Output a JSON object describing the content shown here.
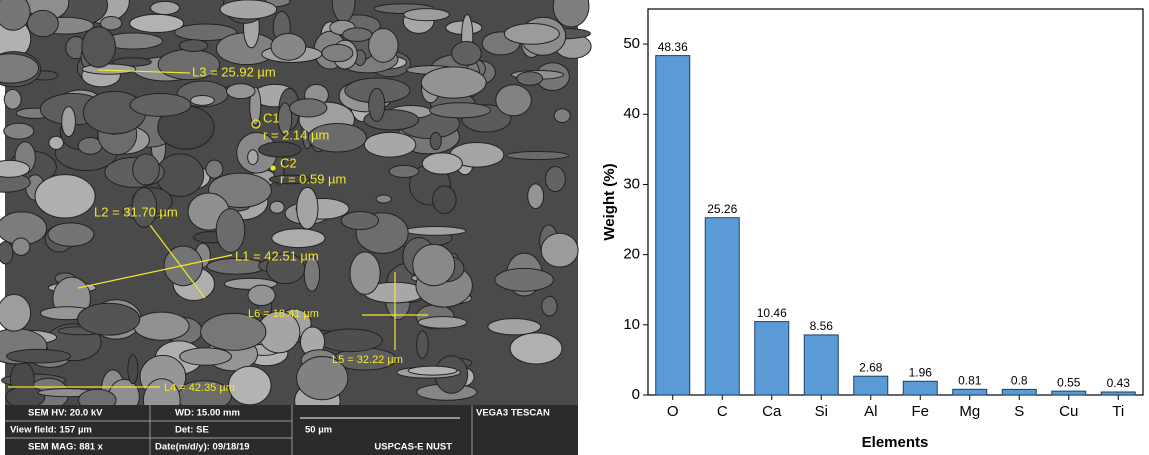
{
  "image": {
    "annotations": {
      "l3": "L3 = 25.92 µm",
      "c1": "C1",
      "r1": "r = 2.14 µm",
      "c2": "C2",
      "r2": "r = 0.59 µm",
      "l2": "L2 = 31.70 µm",
      "l1": "L1 = 42.51 µm",
      "l6": "L6 = 18.41 µm",
      "l5": "L5 = 32.22 µm",
      "l4": "L4 = 42.35 µm"
    },
    "info_bar": {
      "hv": "SEM HV: 20.0 kV",
      "wd": "WD: 15.00 mm",
      "brand": "VEGA3 TESCAN",
      "view_field": "View field: 157 µm",
      "det": "Det: SE",
      "scale": "50 µm",
      "mag": "SEM MAG: 881 x",
      "date": "Date(m/d/y): 09/18/19",
      "lab": "USPCAS-E NUST"
    }
  },
  "chart_data": {
    "type": "bar",
    "x_label": "Elements",
    "y_label": "Weight (%)",
    "categories": [
      "O",
      "C",
      "Ca",
      "Si",
      "Al",
      "Fe",
      "Mg",
      "S",
      "Cu",
      "Ti"
    ],
    "values": [
      48.36,
      25.26,
      10.46,
      8.56,
      2.68,
      1.96,
      0.81,
      0.8,
      0.55,
      0.43
    ],
    "color": "#5b9bd5",
    "ylim": [
      0,
      55
    ],
    "yticks": [
      0,
      10,
      20,
      30,
      40,
      50
    ],
    "grid": false
  }
}
